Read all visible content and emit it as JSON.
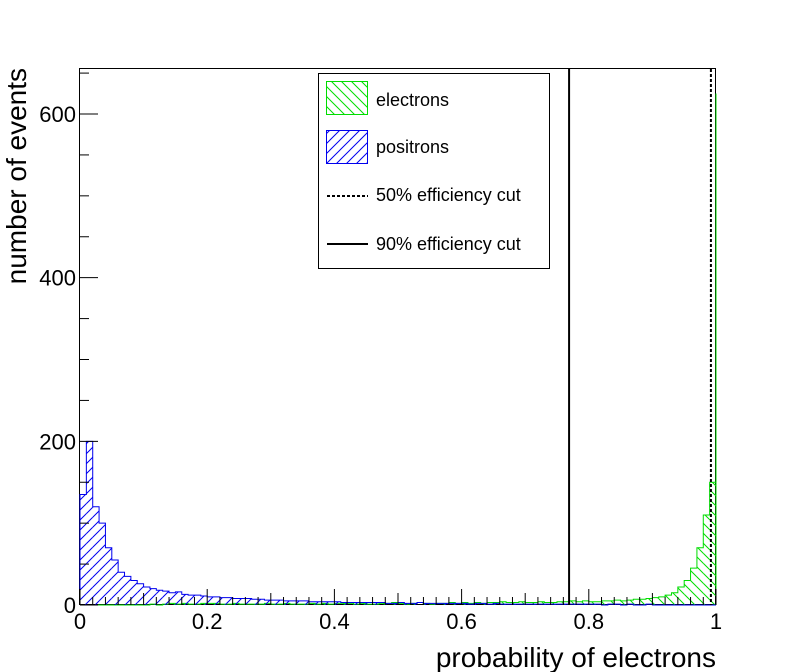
{
  "chart_data": {
    "type": "histogram",
    "xlabel": "probability of electrons",
    "ylabel": "number of events",
    "xlim": [
      0,
      1
    ],
    "ylim": [
      0,
      655
    ],
    "x_ticks": [
      0,
      0.2,
      0.4,
      0.6,
      0.8,
      1
    ],
    "x_tick_labels": [
      "0",
      "0.2",
      "0.4",
      "0.6",
      "0.8",
      "1"
    ],
    "y_ticks": [
      0,
      200,
      400,
      600
    ],
    "y_tick_labels": [
      "0",
      "200",
      "400",
      "600"
    ],
    "bin_width": 0.01,
    "series": [
      {
        "name": "electrons",
        "color": "#00dd00",
        "hatch": "diagonal-down",
        "bin_values": [
          0,
          0,
          0,
          0,
          0,
          0,
          0,
          0,
          0,
          0,
          0,
          1,
          0,
          1,
          2,
          1,
          2,
          1,
          1,
          2,
          2,
          2,
          1,
          1,
          2,
          1,
          1,
          1,
          1,
          2,
          1,
          1,
          2,
          1,
          1,
          1,
          2,
          1,
          2,
          1,
          2,
          2,
          2,
          1,
          2,
          1,
          1,
          2,
          2,
          3,
          2,
          1,
          2,
          3,
          2,
          1,
          2,
          2,
          3,
          2,
          3,
          2,
          3,
          2,
          3,
          3,
          4,
          3,
          3,
          4,
          3,
          3,
          4,
          3,
          3,
          4,
          4,
          5,
          4,
          5,
          4,
          4,
          5,
          5,
          6,
          5,
          6,
          7,
          7,
          8,
          9,
          10,
          12,
          15,
          22,
          30,
          45,
          70,
          110,
          150,
          625
        ]
      },
      {
        "name": "positrons",
        "color": "#0000ee",
        "hatch": "diagonal-up",
        "bin_values": [
          135,
          200,
          120,
          100,
          70,
          55,
          40,
          35,
          30,
          26,
          22,
          20,
          18,
          17,
          15,
          16,
          13,
          12,
          12,
          11,
          10,
          10,
          9,
          9,
          8,
          8,
          8,
          7,
          7,
          6,
          6,
          6,
          5,
          5,
          5,
          5,
          4,
          4,
          4,
          4,
          4,
          3,
          3,
          3,
          3,
          3,
          3,
          3,
          2,
          2,
          3,
          2,
          2,
          3,
          2,
          2,
          2,
          2,
          2,
          2,
          2,
          1,
          2,
          2,
          1,
          2,
          1,
          1,
          1,
          1,
          1,
          1,
          1,
          1,
          1,
          1,
          1,
          1,
          1,
          1,
          1,
          1,
          0,
          1,
          1,
          0,
          1,
          0,
          0,
          1,
          0,
          0,
          0,
          0,
          0,
          0,
          0,
          0,
          0,
          0,
          0
        ]
      }
    ],
    "cuts": [
      {
        "name": "50% efficiency cut",
        "x": 0.992,
        "style": "dashed"
      },
      {
        "name": "90% efficiency cut",
        "x": 0.769,
        "style": "solid"
      }
    ],
    "legend": {
      "position": "top-right",
      "entries": [
        {
          "label": "electrons",
          "kind": "fill",
          "color": "#00dd00",
          "hatch": "diagonal-down"
        },
        {
          "label": "positrons",
          "kind": "fill",
          "color": "#0000ee",
          "hatch": "diagonal-up"
        },
        {
          "label": "50% efficiency cut",
          "kind": "line",
          "style": "dashed"
        },
        {
          "label": "90% efficiency cut",
          "kind": "line",
          "style": "solid"
        }
      ]
    },
    "grid": false
  }
}
